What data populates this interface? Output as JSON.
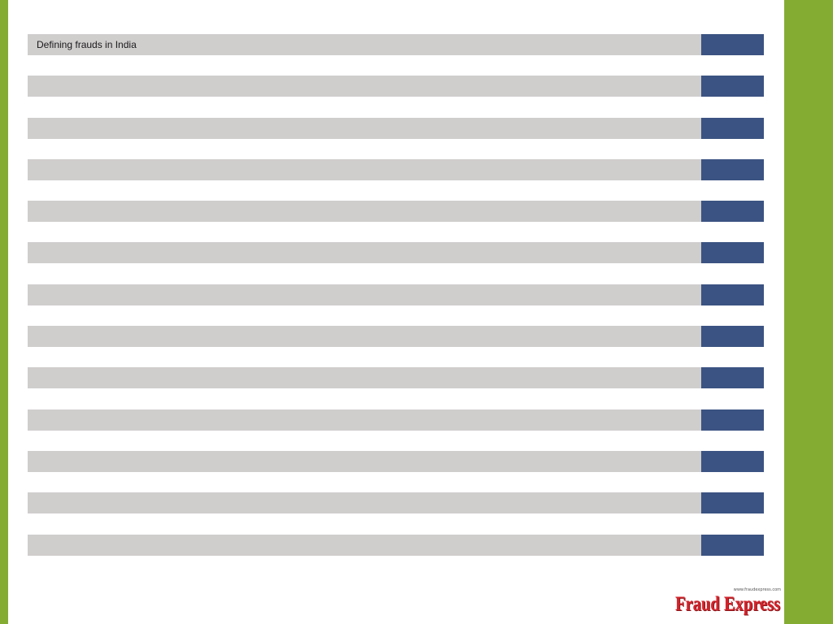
{
  "slide": {
    "rows": [
      {
        "label": "Defining frauds in India"
      },
      {
        "label": ""
      },
      {
        "label": ""
      },
      {
        "label": ""
      },
      {
        "label": ""
      },
      {
        "label": ""
      },
      {
        "label": ""
      },
      {
        "label": ""
      },
      {
        "label": ""
      },
      {
        "label": ""
      },
      {
        "label": ""
      },
      {
        "label": ""
      },
      {
        "label": ""
      }
    ]
  },
  "logo": {
    "text": "Fraud Express",
    "url": "www.fraudexpress.com"
  },
  "colors": {
    "accent_green": "#84ac33",
    "row_gray": "#d0cdcd",
    "tab_blue": "#3b5382",
    "logo_red": "#d4232b"
  }
}
